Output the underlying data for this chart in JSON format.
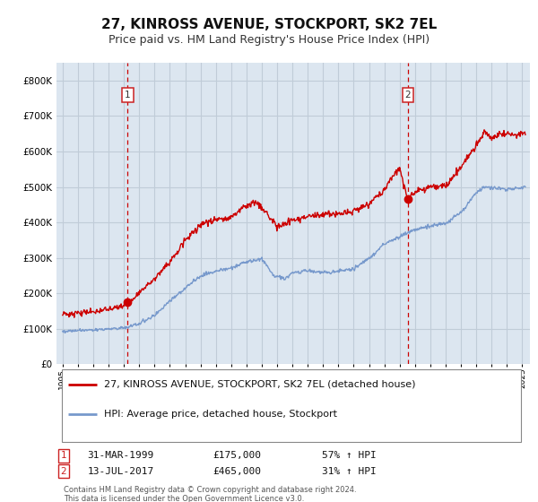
{
  "title": "27, KINROSS AVENUE, STOCKPORT, SK2 7EL",
  "subtitle": "Price paid vs. HM Land Registry's House Price Index (HPI)",
  "bg_color": "#ffffff",
  "plot_bg_color": "#dce6f0",
  "grid_color": "#c0ccd8",
  "red_color": "#cc0000",
  "blue_color": "#7799cc",
  "legend_label_red": "27, KINROSS AVENUE, STOCKPORT, SK2 7EL (detached house)",
  "legend_label_blue": "HPI: Average price, detached house, Stockport",
  "marker1_x": 1999.25,
  "marker1_y": 175000,
  "marker1_label": "1",
  "marker1_date": "31-MAR-1999",
  "marker1_price": "£175,000",
  "marker1_hpi": "57% ↑ HPI",
  "marker2_x": 2017.53,
  "marker2_y": 465000,
  "marker2_label": "2",
  "marker2_date": "13-JUL-2017",
  "marker2_price": "£465,000",
  "marker2_hpi": "31% ↑ HPI",
  "xmin": 1994.6,
  "xmax": 2025.5,
  "ymin": 0,
  "ymax": 850000,
  "yticks": [
    0,
    100000,
    200000,
    300000,
    400000,
    500000,
    600000,
    700000,
    800000
  ],
  "ytick_labels": [
    "£0",
    "£100K",
    "£200K",
    "£300K",
    "£400K",
    "£500K",
    "£600K",
    "£700K",
    "£800K"
  ],
  "footer_text": "Contains HM Land Registry data © Crown copyright and database right 2024.\nThis data is licensed under the Open Government Licence v3.0."
}
